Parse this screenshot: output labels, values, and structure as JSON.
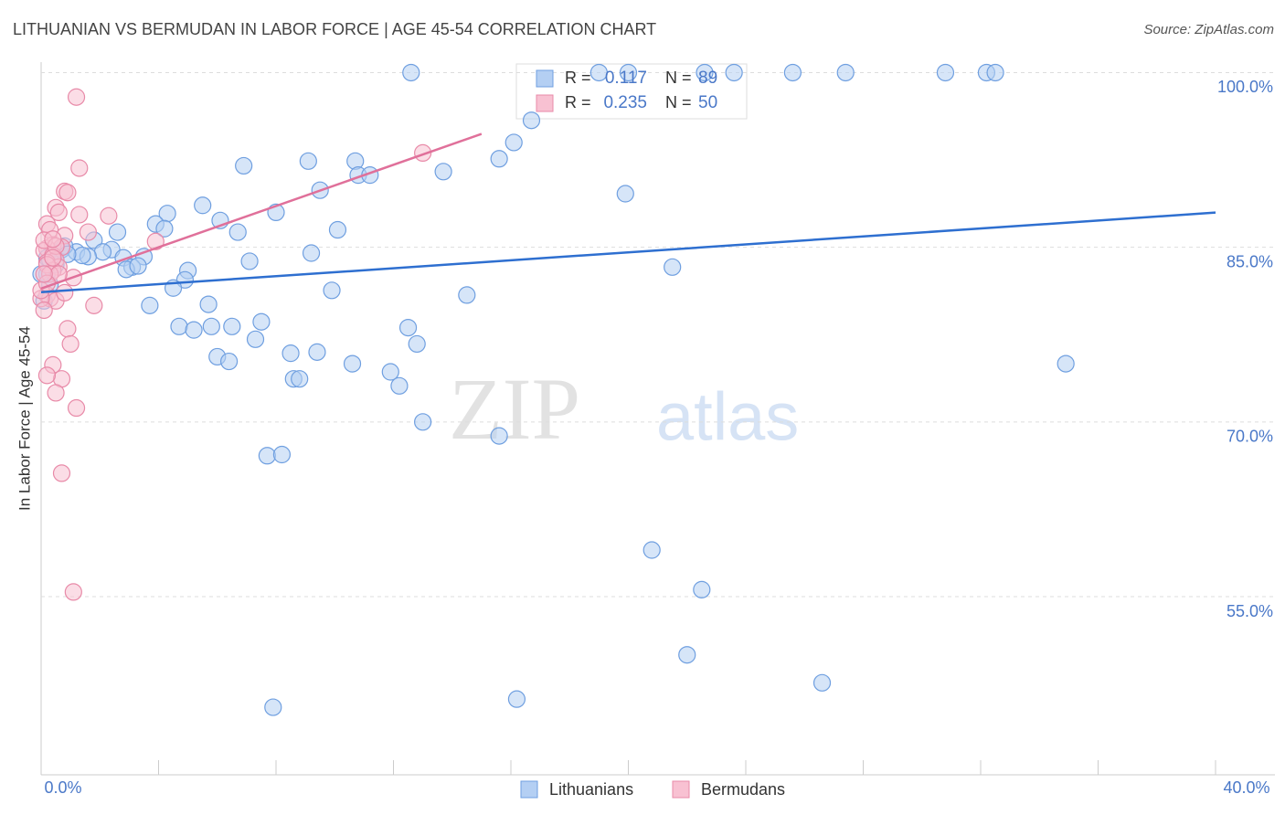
{
  "chart_data": {
    "type": "scatter",
    "title": "LITHUANIAN VS BERMUDAN IN LABOR FORCE | AGE 45-54 CORRELATION CHART",
    "source": "Source: ZipAtlas.com",
    "y_label": "In Labor Force | Age 45-54",
    "watermark": [
      "ZIP",
      "atlas"
    ],
    "xlim": [
      0,
      40
    ],
    "ylim": [
      39.7,
      100.9
    ],
    "xticks": [
      {
        "value": 0,
        "label": "0.0%"
      },
      {
        "value": 40,
        "label": "40.0%"
      }
    ],
    "xminor_ticks": [
      4,
      8,
      12,
      16,
      20,
      24,
      28,
      32,
      36
    ],
    "yticks": [
      {
        "value": 55,
        "label": "55.0%"
      },
      {
        "value": 70,
        "label": "70.0%"
      },
      {
        "value": 85,
        "label": "85.0%"
      },
      {
        "value": 100,
        "label": "100.0%"
      }
    ],
    "grid": true,
    "stats_labels": {
      "r": "R =",
      "n": "N ="
    },
    "series": [
      {
        "name": "Lithuanians",
        "color": "#6f9fe0",
        "fill": "#b4cff3",
        "trend_color": "#2e6fd0",
        "r": "0.117",
        "n": "89",
        "trend": {
          "x": [
            0,
            40
          ],
          "y": [
            81.15,
            87.98
          ]
        },
        "x": [
          12.6,
          19.0,
          20.0,
          22.6,
          23.6,
          25.6,
          27.4,
          30.8,
          32.2,
          32.5,
          16.7,
          16.1,
          15.6,
          13.7,
          10.7,
          9.1,
          6.9,
          10.8,
          11.2,
          9.5,
          19.9,
          5.5,
          4.3,
          8.0,
          3.9,
          4.2,
          6.1,
          6.7,
          10.1,
          2.6,
          1.8,
          2.4,
          0.7,
          1.2,
          2.1,
          1.6,
          1.4,
          2.8,
          3.5,
          3.1,
          2.9,
          3.3,
          7.1,
          9.2,
          5.0,
          4.9,
          4.5,
          21.5,
          9.9,
          14.5,
          3.7,
          5.7,
          4.7,
          5.2,
          5.8,
          6.5,
          7.5,
          7.3,
          12.5,
          12.8,
          6.0,
          6.4,
          8.5,
          9.4,
          10.6,
          8.6,
          8.8,
          11.9,
          12.2,
          34.9,
          13.0,
          15.6,
          7.7,
          8.2,
          20.8,
          22.5,
          22.0,
          26.6,
          7.9,
          16.2,
          0.2,
          0.3,
          0.0,
          0.8,
          0.5,
          0.2,
          0.9,
          0.1,
          0.3
        ],
        "values": [
          100,
          100,
          100,
          100,
          100,
          100,
          100,
          100,
          100,
          100,
          95.9,
          94.0,
          92.6,
          91.5,
          92.4,
          92.4,
          92.0,
          91.2,
          91.2,
          89.9,
          89.6,
          88.6,
          87.9,
          88.0,
          87.0,
          86.6,
          87.3,
          86.3,
          86.5,
          86.3,
          85.6,
          84.8,
          84.8,
          84.6,
          84.6,
          84.2,
          84.3,
          84.1,
          84.2,
          83.3,
          83.1,
          83.4,
          83.8,
          84.5,
          83.0,
          82.2,
          81.5,
          83.3,
          81.3,
          80.9,
          80.0,
          80.1,
          78.2,
          77.9,
          78.2,
          78.2,
          78.6,
          77.1,
          78.1,
          76.7,
          75.6,
          75.2,
          75.9,
          76.0,
          75.0,
          73.7,
          73.7,
          74.3,
          73.1,
          75.0,
          70.0,
          68.8,
          67.1,
          67.2,
          59.0,
          55.6,
          50.0,
          47.6,
          45.5,
          46.2,
          82.7,
          81.8,
          82.7,
          85.1,
          83.5,
          84.1,
          84.4,
          80.4,
          83.9
        ]
      },
      {
        "name": "Bermudans",
        "color": "#e88aa8",
        "fill": "#f8c1d2",
        "trend_color": "#e0709a",
        "r": "0.235",
        "n": "50",
        "trend": {
          "x": [
            0,
            15
          ],
          "y": [
            81.46,
            94.74
          ]
        },
        "x": [
          1.2,
          1.3,
          0.8,
          0.9,
          0.5,
          0.6,
          1.3,
          2.3,
          0.2,
          0.3,
          1.6,
          0.8,
          3.9,
          13.0,
          0.4,
          0.7,
          0.2,
          0.1,
          0.4,
          0.5,
          0.2,
          0.6,
          0.4,
          1.1,
          0.2,
          0.3,
          0.5,
          0.0,
          1.8,
          0.9,
          1.0,
          0.4,
          0.7,
          0.2,
          0.5,
          1.2,
          0.7,
          1.1,
          0.1,
          0.2,
          0.3,
          0.0,
          0.1,
          0.5,
          0.4,
          0.6,
          0.8,
          0.2,
          0.4,
          0.1
        ],
        "values": [
          97.9,
          91.8,
          89.8,
          89.7,
          88.4,
          88.0,
          87.8,
          87.7,
          87.0,
          86.5,
          86.3,
          86.0,
          85.5,
          93.1,
          85.2,
          85.0,
          84.9,
          84.7,
          84.3,
          83.9,
          83.7,
          83.3,
          83.0,
          82.4,
          80.9,
          80.6,
          80.4,
          80.6,
          80.0,
          78.0,
          76.7,
          74.9,
          73.7,
          74.0,
          72.5,
          71.2,
          65.6,
          55.4,
          85.6,
          83.5,
          82.7,
          81.3,
          79.6,
          85.1,
          85.7,
          82.7,
          81.1,
          81.9,
          84.1,
          82.7
        ]
      }
    ]
  }
}
